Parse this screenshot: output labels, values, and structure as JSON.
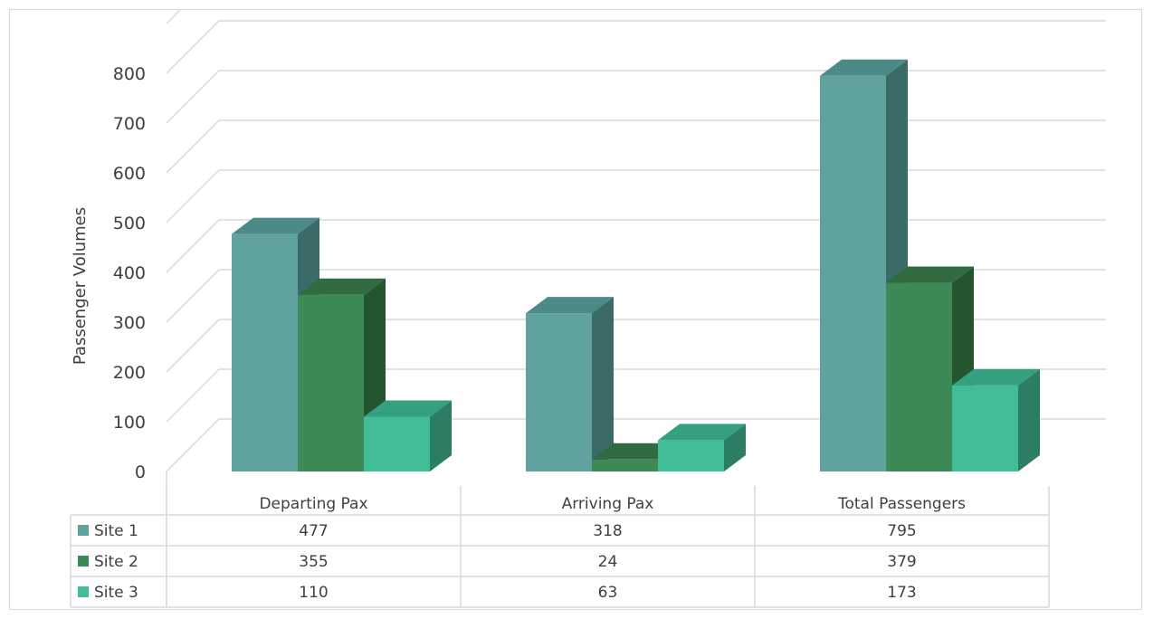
{
  "chart_data": {
    "type": "bar",
    "style": "3d-clustered-column-with-data-table",
    "categories": [
      "Departing Pax",
      "Arriving Pax",
      "Total Passengers"
    ],
    "series": [
      {
        "name": "Site 1",
        "values": [
          477,
          318,
          795
        ],
        "color": "#5fa29e",
        "side_color": "#3b6b68",
        "top_color": "#4b8a86"
      },
      {
        "name": "Site 2",
        "values": [
          355,
          24,
          379
        ],
        "color": "#3e8a56",
        "side_color": "#25552f",
        "top_color": "#306b42"
      },
      {
        "name": "Site 3",
        "values": [
          110,
          63,
          173
        ],
        "color": "#40bc96",
        "side_color": "#2b7d64",
        "top_color": "#35a07f"
      }
    ],
    "ylabel": "Passenger Volumes",
    "xlabel": "",
    "ylim": [
      0,
      800
    ],
    "yticks": [
      0,
      100,
      200,
      300,
      400,
      500,
      600,
      700,
      800
    ],
    "grid": true,
    "legend": "data-table-rows"
  }
}
